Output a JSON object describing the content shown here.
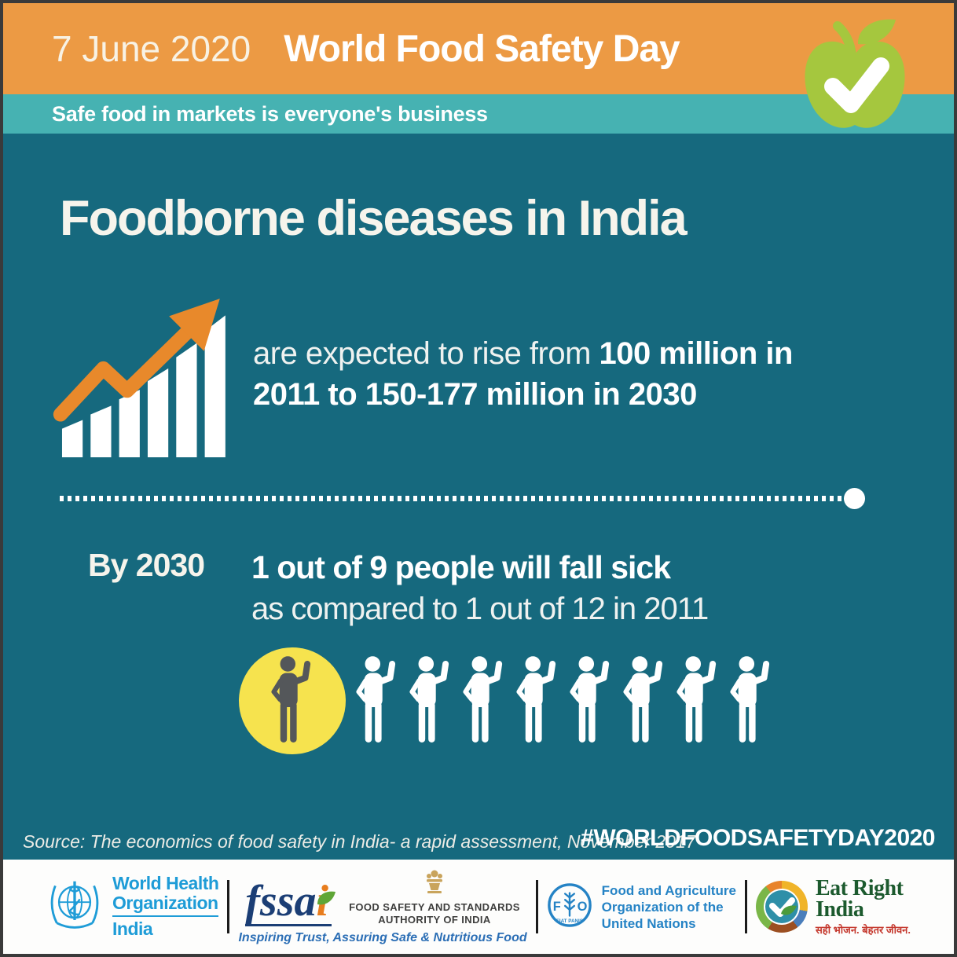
{
  "header": {
    "date": "7 June 2020",
    "title": "World Food Safety Day",
    "tagline": "Safe food in markets is everyone's business"
  },
  "main": {
    "heading": "Foodborne diseases in India",
    "rise": {
      "prefix": "are expected to rise from ",
      "bold": "100 million in 2011 to 150-177 million in 2030"
    },
    "by2030": {
      "label": "By 2030",
      "line1": "1 out of 9 people will fall sick",
      "line2": "as compared to 1 out of 12 in 2011"
    },
    "pictograph": {
      "total": 9,
      "highlighted": 1
    },
    "source": "Source: The economics of food safety in India- a rapid assessment, November 2017",
    "hashtag": "#WORLDFOODSAFETYDAY2020"
  },
  "footer": {
    "who": {
      "name_line1": "World Health",
      "name_line2": "Organization",
      "country": "India"
    },
    "fssai": {
      "wordmark_prefix": "fssa",
      "wordmark_i": "i",
      "org_line1": "FOOD SAFETY AND STANDARDS",
      "org_line2": "AUTHORITY OF INDIA",
      "tagline": "Inspiring Trust, Assuring Safe & Nutritious Food"
    },
    "fao": {
      "abbr_f": "F",
      "abbr_o": "O",
      "motto": "FIAT PANIS",
      "line1": "Food and Agriculture",
      "line2": "Organization of the",
      "line3": "United Nations"
    },
    "eat_right": {
      "line1": "Eat Right",
      "line2": "India",
      "hindi": "सही भोजन. बेहतर जीवन."
    }
  },
  "colors": {
    "header_orange": "#EC9A44",
    "tagline_teal": "#46B2B2",
    "background_teal": "#16697E",
    "accent_orange": "#E8892B",
    "highlight_yellow": "#F6E34E",
    "dark_figure": "#54575A",
    "apple_green": "#A5C73E",
    "who_blue": "#1E9CD7",
    "fao_blue": "#2583C5",
    "fssai_navy": "#1B3E75",
    "eat_right_green": "#1C5A2E"
  },
  "chart_data": {
    "type": "pictograph",
    "title": "Foodborne diseases in India",
    "trend": {
      "from": {
        "year": 2011,
        "cases_million": 100
      },
      "to": {
        "year": 2030,
        "cases_million_low": 150,
        "cases_million_high": 177
      }
    },
    "ratio_2030": {
      "sick": 1,
      "out_of": 9,
      "label": "1 out of 9 people will fall sick"
    },
    "ratio_2011": {
      "sick": 1,
      "out_of": 12,
      "label": "as compared to 1 out of 12 in 2011"
    },
    "icons_total": 9,
    "icons_highlighted": 1,
    "source": "The economics of food safety in India- a rapid assessment, November 2017"
  }
}
